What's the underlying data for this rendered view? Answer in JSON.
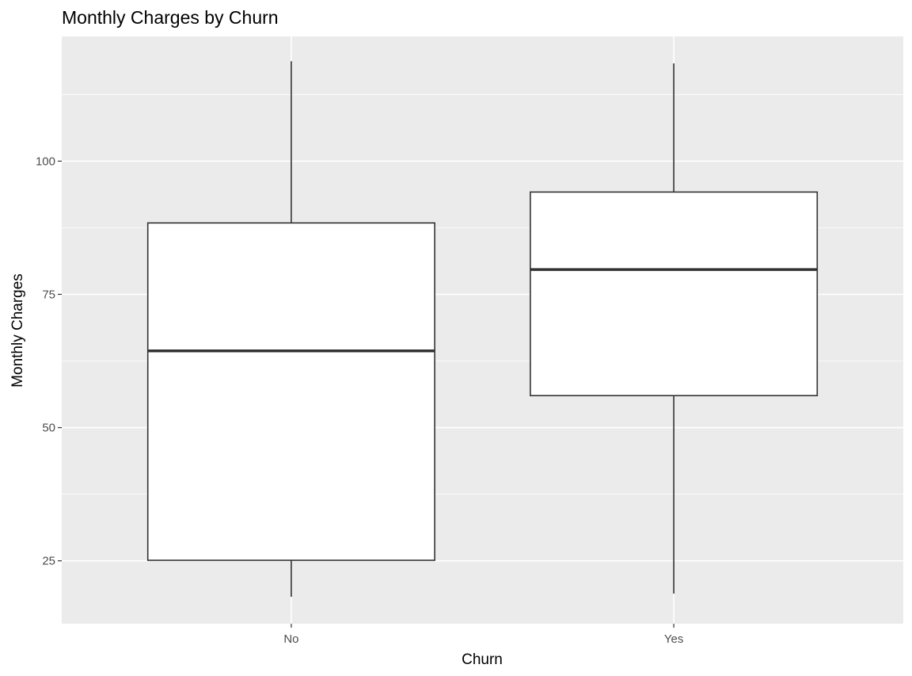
{
  "chart_data": {
    "type": "boxplot",
    "title": "Monthly Charges by Churn",
    "xlabel": "Churn",
    "ylabel": "Monthly Charges",
    "categories": [
      "No",
      "Yes"
    ],
    "ylim": [
      13.2,
      123.4
    ],
    "yticks": [
      25,
      50,
      75,
      100
    ],
    "grid": true,
    "legend": "none",
    "series": [
      {
        "boxes": [
          {
            "category": "No",
            "min": 18.25,
            "q1": 25.1,
            "median": 64.4,
            "q3": 88.4,
            "max": 118.75
          },
          {
            "category": "Yes",
            "min": 18.85,
            "q1": 56.0,
            "median": 79.65,
            "q3": 94.2,
            "max": 118.35
          }
        ]
      }
    ]
  },
  "colors": {
    "panel": "#ebebeb",
    "grid_major": "#ffffff",
    "grid_minor": "#f5f5f5",
    "box_fill": "#ffffff",
    "box_line": "#333333",
    "tick_text": "#4d4d4d",
    "title_text": "#000000"
  }
}
